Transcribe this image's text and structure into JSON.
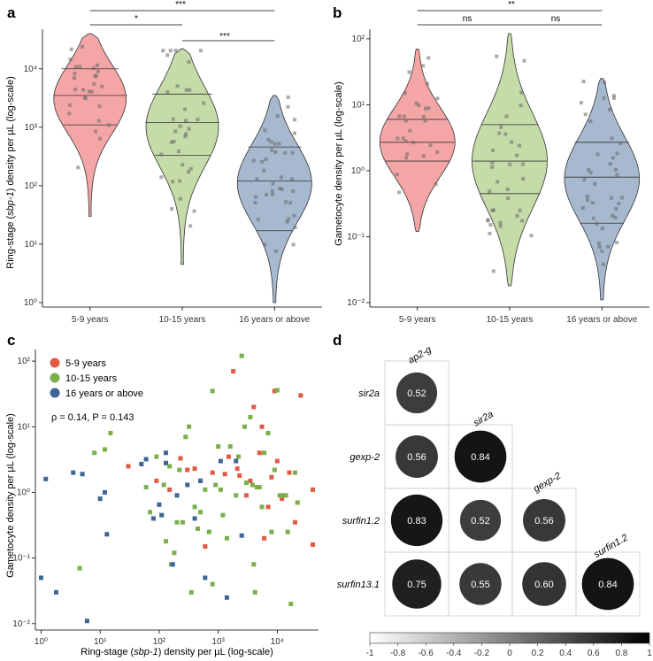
{
  "panels": {
    "a": {
      "label": "a",
      "ylabel_before": "Ring-stage (",
      "ylabel_gene": "sbp-1",
      "ylabel_after": ") density per µL (log-scale)",
      "significance": [
        "*",
        "***",
        "***"
      ]
    },
    "b": {
      "label": "b",
      "ylabel": "Gametocyte density per µL (log-scale)",
      "significance": [
        "ns",
        "**",
        "ns"
      ]
    },
    "c": {
      "label": "c",
      "xlabel_before": "Ring-stage (",
      "xlabel_gene": "sbp-1",
      "xlabel_after": ") density per µL (log-scale)",
      "ylabel": "Gametocyte density per µL (log-scale)",
      "annotation": "ρ = 0.14, P = 0.143"
    },
    "d": {
      "label": "d"
    }
  },
  "groups": [
    "5-9 years",
    "10-15 years",
    "16 years or above"
  ],
  "colors": {
    "fill": [
      "#f4a6a6",
      "#c5dba8",
      "#a7b9cf"
    ],
    "point": [
      "#e05a44",
      "#7aaf4a",
      "#3d6596"
    ],
    "jitter": "#666666"
  },
  "log_ticks": {
    "a": [
      "10⁰",
      "10¹",
      "10²",
      "10³",
      "10⁴"
    ],
    "b": [
      "10⁻²",
      "10⁻¹",
      "10⁰",
      "10¹",
      "10²"
    ],
    "c_x": [
      "10⁰",
      "10¹",
      "10²",
      "10³",
      "10⁴"
    ],
    "c_y": [
      "10⁻²",
      "10⁻¹",
      "10⁰",
      "10¹",
      "10²"
    ]
  },
  "colorbar_ticks": [
    "-1",
    "-0.8",
    "-0.6",
    "-0.4",
    "-0.2",
    "0",
    "0.2",
    "0.4",
    "0.6",
    "0.8",
    "1"
  ],
  "chart_data": [
    {
      "type": "violin",
      "title": "a",
      "ylabel": "Ring-stage (sbp-1) density per µL (log-scale)",
      "yscale": "log",
      "ylim": [
        1,
        40000
      ],
      "categories": [
        "5-9 years",
        "10-15 years",
        "16 years or above"
      ],
      "range": [
        [
          30,
          40000
        ],
        [
          4.5,
          22000
        ],
        [
          1,
          3500
        ]
      ],
      "quartiles": [
        [
          1100,
          3500,
          10000
        ],
        [
          330,
          1200,
          3700
        ],
        [
          17,
          120,
          460
        ]
      ],
      "significance": [
        {
          "groups": [
            "5-9 years",
            "10-15 years"
          ],
          "label": "*"
        },
        {
          "groups": [
            "5-9 years",
            "16 years or above"
          ],
          "label": "***"
        },
        {
          "groups": [
            "10-15 years",
            "16 years or above"
          ],
          "label": "***"
        }
      ]
    },
    {
      "type": "violin",
      "title": "b",
      "ylabel": "Gametocyte density per µL (log-scale)",
      "yscale": "log",
      "ylim": [
        0.01,
        120
      ],
      "categories": [
        "5-9 years",
        "10-15 years",
        "16 years or above"
      ],
      "range": [
        [
          0.12,
          70
        ],
        [
          0.018,
          120
        ],
        [
          0.011,
          25
        ]
      ],
      "quartiles": [
        [
          1.4,
          2.7,
          6
        ],
        [
          0.45,
          1.4,
          5
        ],
        [
          0.16,
          0.8,
          2.7
        ]
      ],
      "significance": [
        {
          "groups": [
            "5-9 years",
            "10-15 years"
          ],
          "label": "ns"
        },
        {
          "groups": [
            "5-9 years",
            "16 years or above"
          ],
          "label": "**"
        },
        {
          "groups": [
            "10-15 years",
            "16 years or above"
          ],
          "label": "ns"
        }
      ]
    },
    {
      "type": "scatter",
      "title": "c",
      "xlabel": "Ring-stage (sbp-1) density per µL (log-scale)",
      "ylabel": "Gametocyte density per µL (log-scale)",
      "xscale": "log",
      "yscale": "log",
      "xlim": [
        0.8,
        50000
      ],
      "ylim": [
        0.008,
        150
      ],
      "legend": "top-left",
      "annotation": "ρ = 0.14, P = 0.143",
      "series": [
        {
          "name": "5-9 years",
          "points": [
            [
              30,
              2.5
            ],
            [
              90,
              1.5
            ],
            [
              150,
              1.1
            ],
            [
              230,
              3.3
            ],
            [
              300,
              2.2
            ],
            [
              400,
              2.3
            ],
            [
              500,
              1.5
            ],
            [
              600,
              0.15
            ],
            [
              800,
              2.0
            ],
            [
              1300,
              1.9
            ],
            [
              1500,
              3.5
            ],
            [
              1800,
              70
            ],
            [
              2100,
              2.3
            ],
            [
              2300,
              1.8
            ],
            [
              3500,
              1.5
            ],
            [
              4000,
              20
            ],
            [
              5000,
              4.0
            ],
            [
              6000,
              0.2
            ],
            [
              7000,
              0.6
            ],
            [
              8000,
              1.7
            ],
            [
              10000,
              3.0
            ],
            [
              12000,
              0.8
            ],
            [
              16000,
              2.0
            ],
            [
              20000,
              0.35
            ],
            [
              25000,
              30
            ],
            [
              40000,
              1.1
            ],
            [
              40000,
              0.16
            ],
            [
              9000,
              35
            ],
            [
              5500,
              10
            ],
            [
              3000,
              0.9
            ]
          ]
        },
        {
          "name": "10-15 years",
          "points": [
            [
              4.5,
              0.07
            ],
            [
              8,
              4
            ],
            [
              12,
              4.5
            ],
            [
              15,
              8
            ],
            [
              60,
              1.2
            ],
            [
              70,
              0.5
            ],
            [
              90,
              3.5
            ],
            [
              120,
              1.3
            ],
            [
              130,
              0.18
            ],
            [
              150,
              2.5
            ],
            [
              160,
              0.08
            ],
            [
              180,
              0.12
            ],
            [
              200,
              0.35
            ],
            [
              220,
              2.2
            ],
            [
              250,
              0.35
            ],
            [
              280,
              7
            ],
            [
              320,
              10
            ],
            [
              350,
              0.03
            ],
            [
              400,
              0.6
            ],
            [
              450,
              0.28
            ],
            [
              500,
              0.5
            ],
            [
              600,
              1.1
            ],
            [
              700,
              0.25
            ],
            [
              800,
              35
            ],
            [
              900,
              1.3
            ],
            [
              1000,
              5
            ],
            [
              1100,
              1.1
            ],
            [
              1200,
              0.45
            ],
            [
              1400,
              0.2
            ],
            [
              1600,
              5
            ],
            [
              2000,
              0.9
            ],
            [
              2200,
              3.5
            ],
            [
              2500,
              120
            ],
            [
              3000,
              1.4
            ],
            [
              3500,
              14
            ],
            [
              3800,
              1.3
            ],
            [
              4000,
              0.08
            ],
            [
              4200,
              0.03
            ],
            [
              4500,
              1.2
            ],
            [
              5000,
              1.2
            ],
            [
              5500,
              0.6
            ],
            [
              6000,
              4
            ],
            [
              7000,
              8
            ],
            [
              8000,
              0.25
            ],
            [
              9000,
              2.2
            ],
            [
              10000,
              36
            ],
            [
              11000,
              0.9
            ],
            [
              12000,
              0.9
            ],
            [
              14000,
              0.9
            ],
            [
              17000,
              0.02
            ],
            [
              20000,
              2
            ],
            [
              22000,
              0.7
            ],
            [
              15000,
              0.25
            ],
            [
              800,
              0.04
            ],
            [
              2800,
              10
            ]
          ]
        },
        {
          "name": "16 years or above",
          "points": [
            [
              1,
              0.05
            ],
            [
              1.2,
              1.6
            ],
            [
              1.8,
              0.03
            ],
            [
              3.5,
              2.0
            ],
            [
              5,
              1.9
            ],
            [
              6,
              0.011
            ],
            [
              10,
              0.8
            ],
            [
              12,
              1.0
            ],
            [
              13,
              0.23
            ],
            [
              50,
              2.7
            ],
            [
              60,
              3.2
            ],
            [
              80,
              0.4
            ],
            [
              100,
              0.65
            ],
            [
              110,
              0.45
            ],
            [
              130,
              2.8
            ],
            [
              130,
              4.0
            ],
            [
              170,
              0.08
            ],
            [
              200,
              0.9
            ],
            [
              300,
              1.3
            ],
            [
              400,
              0.4
            ],
            [
              500,
              1.5
            ],
            [
              600,
              0.05
            ],
            [
              1100,
              3.0
            ],
            [
              1400,
              0.025
            ],
            [
              2000,
              3.0
            ],
            [
              2500,
              0.22
            ]
          ]
        }
      ]
    },
    {
      "type": "heatmap",
      "title": "d",
      "variables": [
        "ap2-g",
        "sir2a",
        "gexp-2",
        "surfin1.2",
        "surfin13.1"
      ],
      "color_scale": [
        -1,
        1
      ],
      "cells": [
        {
          "row": "sir2a",
          "col": "ap2-g",
          "value": 0.52,
          "label": "0.52"
        },
        {
          "row": "gexp-2",
          "col": "ap2-g",
          "value": 0.56,
          "label": "0.56"
        },
        {
          "row": "gexp-2",
          "col": "sir2a",
          "value": 0.84,
          "label": "0.84"
        },
        {
          "row": "surfin1.2",
          "col": "ap2-g",
          "value": 0.83,
          "label": "0.83"
        },
        {
          "row": "surfin1.2",
          "col": "sir2a",
          "value": 0.52,
          "label": "0.52"
        },
        {
          "row": "surfin1.2",
          "col": "gexp-2",
          "value": 0.56,
          "label": "0.56"
        },
        {
          "row": "surfin13.1",
          "col": "ap2-g",
          "value": 0.75,
          "label": "0.75"
        },
        {
          "row": "surfin13.1",
          "col": "sir2a",
          "value": 0.55,
          "label": "0.55"
        },
        {
          "row": "surfin13.1",
          "col": "gexp-2",
          "value": 0.6,
          "label": "0.60"
        },
        {
          "row": "surfin13.1",
          "col": "surfin1.2",
          "value": 0.84,
          "label": "0.84"
        }
      ]
    }
  ]
}
